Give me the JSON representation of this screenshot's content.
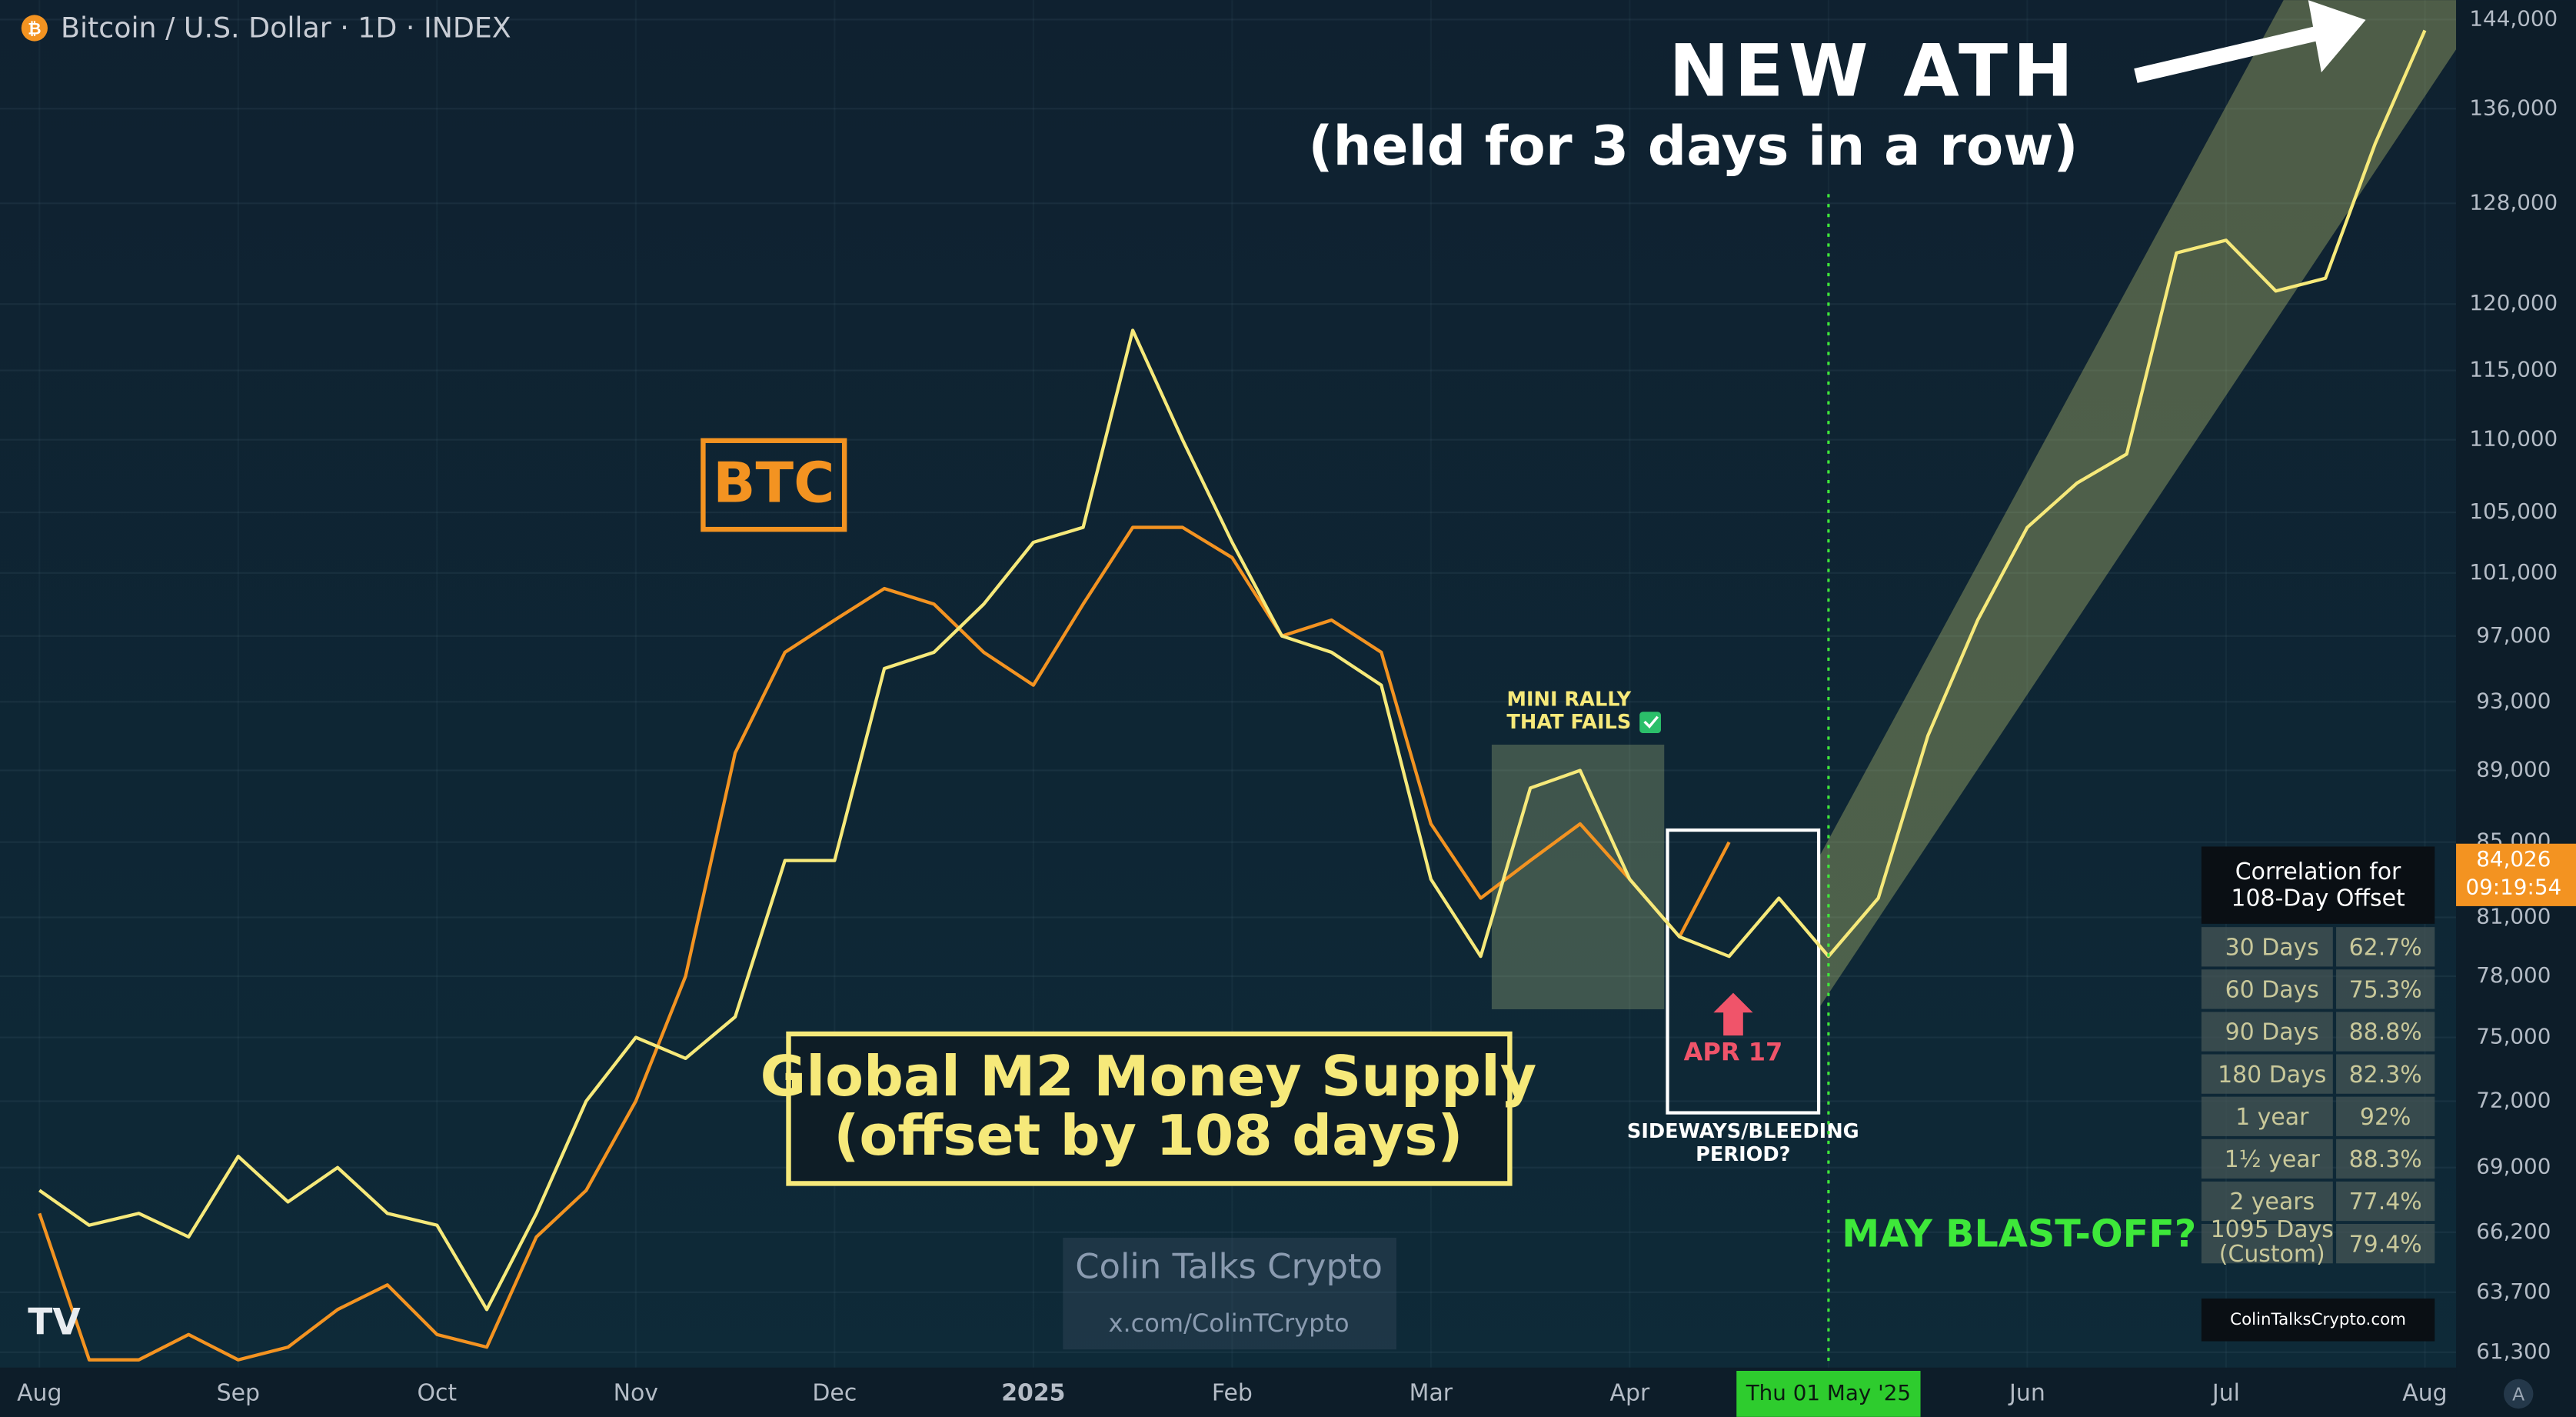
{
  "chart_data": {
    "type": "line",
    "title": "Bitcoin / U.S. Dollar · 1D · INDEX",
    "categories": [
      "Aug",
      null,
      null,
      null,
      "Sep",
      null,
      null,
      null,
      "Oct",
      null,
      null,
      null,
      "Nov",
      null,
      null,
      null,
      "Dec",
      null,
      null,
      null,
      "2025",
      null,
      null,
      null,
      "Feb",
      null,
      null,
      null,
      "Mar",
      null,
      null,
      null,
      "Apr",
      null,
      null,
      null,
      "Thu 01 May '25",
      null,
      null,
      null,
      "Jun",
      null,
      null,
      null,
      "Jul",
      null,
      null,
      null,
      "Aug"
    ],
    "series": [
      {
        "name": "Global M2 Money Supply",
        "name_note": "(offset by 108 days)",
        "color": "#f6e97a",
        "values": [
          68000,
          66500,
          67000,
          66000,
          69500,
          67500,
          69000,
          67000,
          66500,
          63000,
          67000,
          72000,
          75000,
          74000,
          76000,
          84000,
          84000,
          95000,
          96000,
          99000,
          103000,
          104000,
          118000,
          110000,
          103000,
          97000,
          96000,
          94000,
          83000,
          79000,
          88000,
          89000,
          83000,
          80000,
          79000,
          82000,
          79000,
          82000,
          91000,
          98000,
          104000,
          107000,
          109000,
          124000,
          125000,
          121000,
          122000,
          133000,
          143000
        ]
      },
      {
        "name": "BTC",
        "color": "#f39321",
        "values": [
          67000,
          61000,
          61000,
          62000,
          61000,
          61500,
          63000,
          64000,
          62000,
          61500,
          66000,
          68000,
          72000,
          78000,
          90000,
          96000,
          98000,
          100000,
          99000,
          96000,
          94000,
          99000,
          104000,
          104000,
          102000,
          97000,
          98000,
          96000,
          86000,
          82000,
          84000,
          86000,
          83000,
          80000,
          85000,
          null,
          null,
          null,
          null,
          null,
          null,
          null,
          null,
          null,
          null,
          null,
          null,
          null,
          null
        ]
      }
    ],
    "ylim": [
      60700,
      145800
    ],
    "yticks": [
      {
        "value": 61300,
        "label": "61,300"
      },
      {
        "value": 63700,
        "label": "63,700"
      },
      {
        "value": 66200,
        "label": "66,200"
      },
      {
        "value": 69000,
        "label": "69,000"
      },
      {
        "value": 72000,
        "label": "72,000"
      },
      {
        "value": 75000,
        "label": "75,000"
      },
      {
        "value": 78000,
        "label": "78,000"
      },
      {
        "value": 81000,
        "label": "81,000"
      },
      {
        "value": 85000,
        "label": "85,000"
      },
      {
        "value": 89000,
        "label": "89,000"
      },
      {
        "value": 93000,
        "label": "93,000"
      },
      {
        "value": 97000,
        "label": "97,000"
      },
      {
        "value": 101000,
        "label": "101,000"
      },
      {
        "value": 105000,
        "label": "105,000"
      },
      {
        "value": 110000,
        "label": "110,000"
      },
      {
        "value": 115000,
        "label": "115,000"
      },
      {
        "value": 120000,
        "label": "120,000"
      },
      {
        "value": 128000,
        "label": "128,000"
      },
      {
        "value": 136000,
        "label": "136,000"
      },
      {
        "value": 144000,
        "label": "144,000"
      }
    ],
    "log_scale": true,
    "grid": true,
    "price_label": {
      "value": 84026,
      "label": "84,026",
      "color": "#f39321"
    },
    "countdown": "09:19:54",
    "annotations": {
      "headline": "NEW ATH",
      "headline_sub": "(held for 3 days in a row)",
      "mini_rally": [
        "MINI RALLY",
        "THAT FAILS"
      ],
      "apr17": "APR 17",
      "sideways": [
        "SIDEWAYS/BLEEDING",
        "PERIOD?"
      ],
      "may": "MAY BLAST-OFF?",
      "watermark": [
        "Colin Talks Crypto",
        "x.com/ColinTCrypto"
      ],
      "axis_corner": "A"
    },
    "correlation_table": {
      "title": [
        "Correlation for",
        "108-Day Offset"
      ],
      "rows": [
        [
          "30 Days",
          "62.7%"
        ],
        [
          "60 Days",
          "75.3%"
        ],
        [
          "90 Days",
          "88.8%"
        ],
        [
          "180 Days",
          "82.3%"
        ],
        [
          "1 year",
          "92%"
        ],
        [
          "1½ year",
          "88.3%"
        ],
        [
          "2 years",
          "77.4%"
        ],
        [
          [
            "1095 Days",
            "(Custom)"
          ],
          "79.4%"
        ]
      ],
      "footer": "ColinTalksCrypto.com"
    }
  }
}
